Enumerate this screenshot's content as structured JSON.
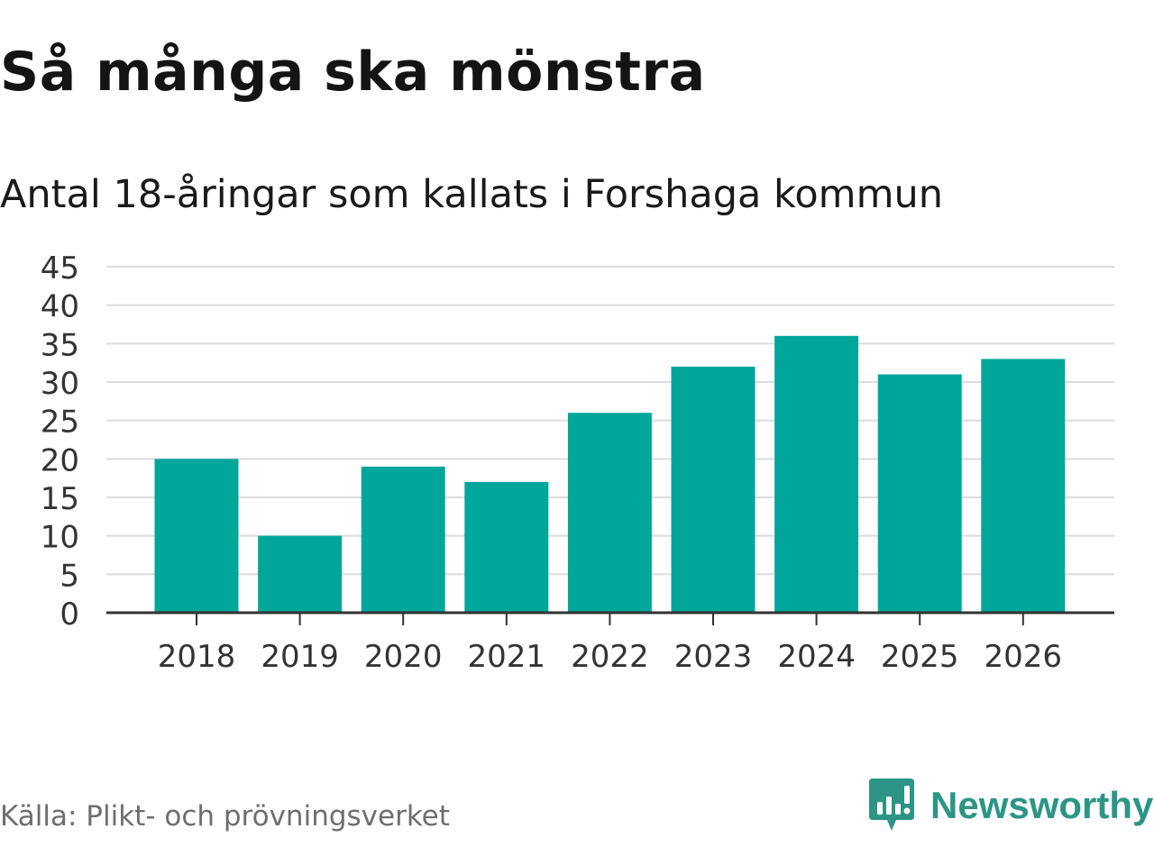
{
  "title": "Så många ska mönstra",
  "subtitle": "Antal 18-åringar som kallats i Forshaga kommun",
  "source": "Källa: Plikt- och prövningsverket",
  "brand": {
    "name": "Newsworthy",
    "icon": "newsworthy-logo-icon",
    "color": "#2c9585"
  },
  "chart_data": {
    "type": "bar",
    "categories": [
      "2018",
      "2019",
      "2020",
      "2021",
      "2022",
      "2023",
      "2024",
      "2025",
      "2026"
    ],
    "values": [
      20,
      10,
      19,
      17,
      26,
      32,
      36,
      31,
      33
    ],
    "ylim": [
      0,
      45
    ],
    "yticks": [
      0,
      5,
      10,
      15,
      20,
      25,
      30,
      35,
      40,
      45
    ],
    "grid": true,
    "bar_color": "#00a69a"
  }
}
